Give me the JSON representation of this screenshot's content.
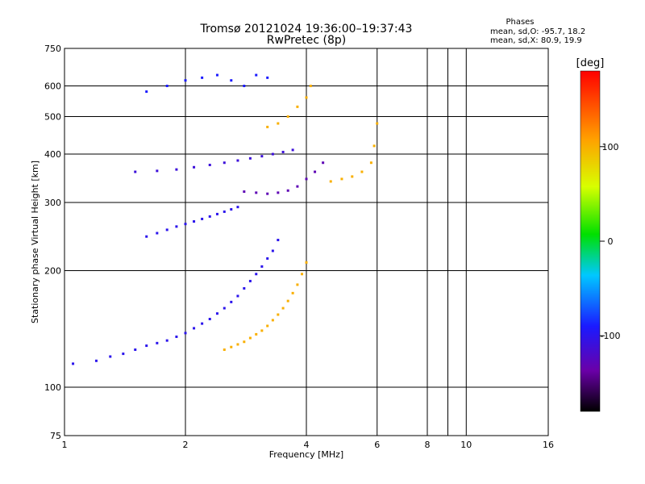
{
  "chart_data": {
    "type": "scatter",
    "title": "Tromsø 20121024 19:36:00–19:37:43",
    "subtitle": "RwPretec (8p)",
    "xlabel": "Frequency [MHz]",
    "ylabel": "Stationary phase Virtual Height [km]",
    "x_scale": "log",
    "y_scale": "log",
    "xlim": [
      1,
      16
    ],
    "ylim": [
      75,
      750
    ],
    "x_ticks": [
      1,
      2,
      4,
      6,
      8,
      10,
      16
    ],
    "x_minor_ticks": [
      9
    ],
    "y_ticks": [
      75,
      100,
      200,
      300,
      400,
      500,
      600,
      750
    ],
    "grid": true,
    "stats": {
      "heading": "Phases",
      "line1": "mean, sd,O: -95.7, 18.2",
      "line2": "mean, sd,X:  80.9, 19.9"
    },
    "colorbar": {
      "label": "[deg]",
      "range": [
        -180,
        180
      ],
      "ticks": [
        100,
        0,
        -100
      ],
      "colormap": "rainbow (black-purple-blue-cyan-green-yellow-orange-red)"
    },
    "traces": [
      {
        "name": "",
        "phase": -100,
        "points": [
          [
            1.05,
            115
          ],
          [
            1.2,
            117
          ],
          [
            1.3,
            120
          ],
          [
            1.4,
            122
          ],
          [
            1.5,
            125
          ],
          [
            1.6,
            128
          ],
          [
            1.7,
            130
          ],
          [
            1.8,
            132
          ],
          [
            1.9,
            135
          ],
          [
            2.0,
            138
          ],
          [
            2.1,
            142
          ],
          [
            2.2,
            146
          ],
          [
            2.3,
            150
          ],
          [
            2.4,
            155
          ],
          [
            2.5,
            160
          ],
          [
            2.6,
            166
          ],
          [
            2.7,
            172
          ],
          [
            2.8,
            180
          ],
          [
            2.9,
            188
          ],
          [
            3.0,
            196
          ],
          [
            3.1,
            205
          ],
          [
            3.2,
            215
          ],
          [
            3.3,
            225
          ],
          [
            3.4,
            240
          ]
        ]
      },
      {
        "name": "",
        "phase": 100,
        "points": [
          [
            2.5,
            125
          ],
          [
            2.6,
            127
          ],
          [
            2.7,
            129
          ],
          [
            2.8,
            131
          ],
          [
            2.9,
            134
          ],
          [
            3.0,
            137
          ],
          [
            3.1,
            140
          ],
          [
            3.2,
            144
          ],
          [
            3.3,
            149
          ],
          [
            3.4,
            154
          ],
          [
            3.5,
            160
          ],
          [
            3.6,
            167
          ],
          [
            3.7,
            175
          ],
          [
            3.8,
            184
          ],
          [
            3.9,
            196
          ],
          [
            4.0,
            210
          ]
        ]
      },
      {
        "name": "",
        "phase": -100,
        "points": [
          [
            1.6,
            245
          ],
          [
            1.7,
            250
          ],
          [
            1.8,
            255
          ],
          [
            1.9,
            260
          ],
          [
            2.0,
            264
          ],
          [
            2.1,
            268
          ],
          [
            2.2,
            272
          ],
          [
            2.3,
            276
          ],
          [
            2.4,
            280
          ],
          [
            2.5,
            284
          ],
          [
            2.6,
            288
          ],
          [
            2.7,
            292
          ]
        ]
      },
      {
        "name": "",
        "phase": -110,
        "points": [
          [
            1.5,
            360
          ],
          [
            1.7,
            362
          ],
          [
            1.9,
            365
          ],
          [
            2.1,
            370
          ],
          [
            2.3,
            375
          ],
          [
            2.5,
            380
          ],
          [
            2.7,
            385
          ],
          [
            2.9,
            390
          ],
          [
            3.1,
            395
          ],
          [
            3.3,
            400
          ],
          [
            3.5,
            405
          ],
          [
            3.7,
            410
          ]
        ]
      },
      {
        "name": "",
        "phase": -130,
        "points": [
          [
            2.8,
            320
          ],
          [
            3.0,
            318
          ],
          [
            3.2,
            316
          ],
          [
            3.4,
            318
          ],
          [
            3.6,
            322
          ],
          [
            3.8,
            330
          ],
          [
            4.0,
            345
          ],
          [
            4.2,
            360
          ],
          [
            4.4,
            380
          ]
        ]
      },
      {
        "name": "",
        "phase": 100,
        "points": [
          [
            3.2,
            470
          ],
          [
            3.4,
            480
          ],
          [
            3.6,
            500
          ],
          [
            3.8,
            530
          ],
          [
            4.0,
            560
          ],
          [
            4.1,
            600
          ],
          [
            4.6,
            340
          ],
          [
            4.9,
            345
          ],
          [
            5.2,
            350
          ],
          [
            5.5,
            360
          ],
          [
            5.8,
            380
          ],
          [
            5.9,
            420
          ],
          [
            6.0,
            480
          ]
        ]
      },
      {
        "name": "",
        "phase": -90,
        "points": [
          [
            1.6,
            580
          ],
          [
            1.8,
            600
          ],
          [
            2.0,
            620
          ],
          [
            2.2,
            630
          ],
          [
            2.4,
            640
          ],
          [
            2.6,
            620
          ],
          [
            2.8,
            600
          ],
          [
            3.0,
            640
          ],
          [
            3.2,
            630
          ]
        ]
      }
    ]
  }
}
